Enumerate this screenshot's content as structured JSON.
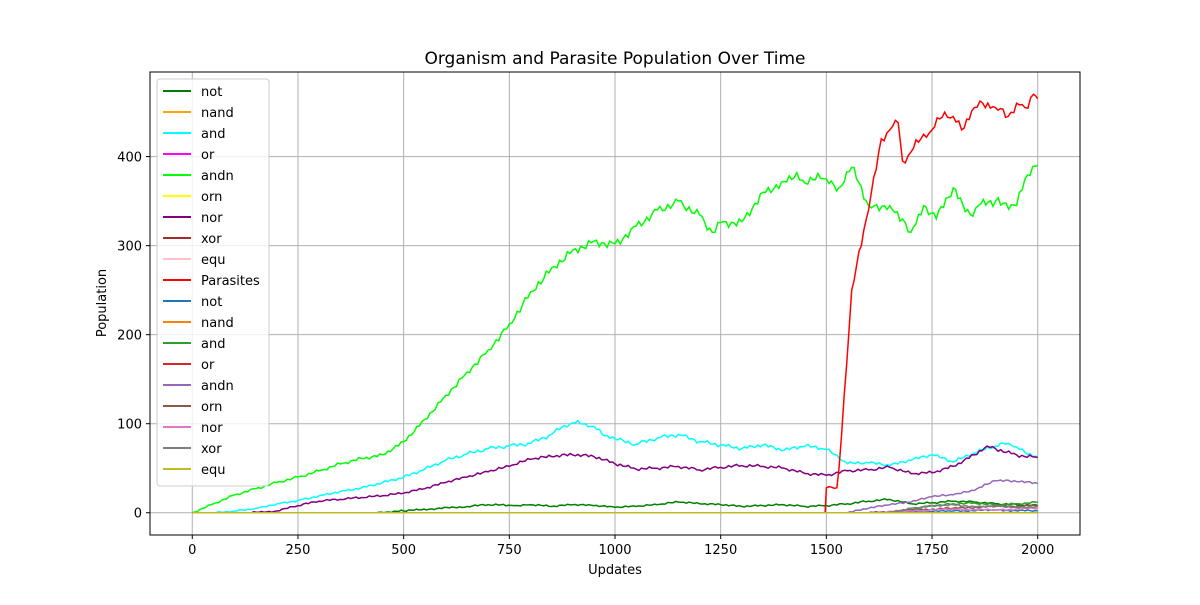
{
  "chart_data": {
    "type": "line",
    "title": "Organism and Parasite Population Over Time",
    "xlabel": "Updates",
    "ylabel": "Population",
    "xlim": [
      -100,
      2100
    ],
    "ylim": [
      -25,
      495
    ],
    "xticks": [
      0,
      250,
      500,
      750,
      1000,
      1250,
      1500,
      1750,
      2000
    ],
    "yticks": [
      0,
      100,
      200,
      300,
      400
    ],
    "grid": true,
    "legend_position": "upper-left",
    "series": [
      {
        "name": "not",
        "color": "#008000",
        "x": [
          0,
          430,
          500,
          560,
          650,
          700,
          760,
          800,
          850,
          900,
          950,
          1000,
          1050,
          1100,
          1150,
          1200,
          1250,
          1300,
          1350,
          1400,
          1450,
          1500,
          1550,
          1600,
          1650,
          1700,
          1750,
          1800,
          1850,
          1900,
          1950,
          2000
        ],
        "y": [
          0,
          0,
          2,
          4,
          7,
          9,
          8,
          9,
          7,
          9,
          8,
          6,
          7,
          9,
          12,
          10,
          9,
          7,
          8,
          9,
          7,
          8,
          10,
          13,
          15,
          10,
          11,
          13,
          12,
          10,
          9,
          8
        ]
      },
      {
        "name": "nand",
        "color": "#FFA500",
        "x": [
          0,
          2000
        ],
        "y": [
          0,
          0
        ]
      },
      {
        "name": "and",
        "color": "#00FFFF",
        "x": [
          0,
          50,
          100,
          150,
          200,
          250,
          300,
          350,
          400,
          450,
          500,
          550,
          600,
          650,
          700,
          750,
          800,
          850,
          880,
          900,
          930,
          950,
          970,
          1000,
          1050,
          1100,
          1150,
          1200,
          1250,
          1300,
          1350,
          1400,
          1450,
          1500,
          1550,
          1600,
          1650,
          1700,
          1750,
          1800,
          1850,
          1900,
          1930,
          1950,
          1970,
          2000
        ],
        "y": [
          0,
          0,
          2,
          5,
          10,
          14,
          19,
          24,
          28,
          34,
          40,
          49,
          59,
          66,
          72,
          75,
          78,
          88,
          98,
          101,
          100,
          97,
          88,
          83,
          77,
          84,
          88,
          80,
          76,
          72,
          76,
          70,
          75,
          71,
          55,
          56,
          53,
          59,
          65,
          57,
          67,
          75,
          78,
          74,
          68,
          63
        ]
      },
      {
        "name": "or",
        "color": "#FF00FF",
        "x": [
          0,
          2000
        ],
        "y": [
          0,
          0
        ]
      },
      {
        "name": "andn",
        "color": "#00FF00",
        "x": [
          0,
          50,
          100,
          150,
          200,
          250,
          300,
          350,
          400,
          450,
          500,
          550,
          600,
          650,
          700,
          750,
          800,
          850,
          900,
          950,
          1000,
          1050,
          1100,
          1150,
          1200,
          1230,
          1250,
          1300,
          1350,
          1400,
          1430,
          1450,
          1480,
          1500,
          1530,
          1560,
          1600,
          1650,
          1680,
          1700,
          1730,
          1760,
          1800,
          1840,
          1860,
          1900,
          1950,
          1970,
          2000
        ],
        "y": [
          0,
          10,
          20,
          27,
          34,
          40,
          47,
          55,
          61,
          65,
          80,
          105,
          132,
          158,
          183,
          212,
          248,
          275,
          295,
          305,
          302,
          322,
          340,
          350,
          335,
          315,
          326,
          327,
          360,
          372,
          382,
          370,
          381,
          375,
          365,
          388,
          345,
          345,
          330,
          315,
          345,
          330,
          365,
          335,
          345,
          350,
          345,
          375,
          390
        ]
      },
      {
        "name": "orn",
        "color": "#FFFF00",
        "x": [
          0,
          2000
        ],
        "y": [
          0,
          0
        ]
      },
      {
        "name": "nor",
        "color": "#800080",
        "x": [
          0,
          140,
          200,
          250,
          300,
          350,
          400,
          450,
          500,
          550,
          600,
          650,
          700,
          750,
          800,
          850,
          900,
          950,
          1000,
          1050,
          1100,
          1150,
          1200,
          1250,
          1300,
          1350,
          1400,
          1450,
          1500,
          1550,
          1600,
          1650,
          1700,
          1750,
          1800,
          1850,
          1880,
          1900,
          1950,
          2000
        ],
        "y": [
          0,
          0,
          2,
          8,
          13,
          15,
          17,
          19,
          22,
          27,
          34,
          40,
          46,
          52,
          60,
          63,
          65,
          63,
          55,
          49,
          50,
          52,
          48,
          51,
          53,
          52,
          50,
          44,
          42,
          47,
          48,
          51,
          44,
          45,
          52,
          65,
          75,
          72,
          65,
          62
        ]
      },
      {
        "name": "xor",
        "color": "#A52A2A",
        "x": [
          0,
          2000
        ],
        "y": [
          0,
          0
        ]
      },
      {
        "name": "equ",
        "color": "#FFC0CB",
        "x": [
          0,
          2000
        ],
        "y": [
          0,
          0
        ]
      },
      {
        "name": "Parasites",
        "color": "#FF0000",
        "x": [
          0,
          1497,
          1500,
          1525,
          1530,
          1560,
          1600,
          1630,
          1650,
          1670,
          1680,
          1700,
          1730,
          1750,
          1780,
          1800,
          1820,
          1850,
          1870,
          1900,
          1930,
          1950,
          1970,
          1990,
          2000
        ],
        "y": [
          0,
          0,
          28,
          28,
          50,
          250,
          340,
          420,
          430,
          438,
          395,
          405,
          425,
          430,
          450,
          445,
          430,
          455,
          460,
          455,
          445,
          460,
          455,
          470,
          465
        ]
      },
      {
        "name": "not",
        "color": "#1f77b4",
        "x": [
          0,
          1600,
          1700,
          1800,
          1900,
          2000
        ],
        "y": [
          0,
          0,
          1,
          2,
          3,
          2
        ]
      },
      {
        "name": "nand",
        "color": "#ff7f0e",
        "x": [
          0,
          2000
        ],
        "y": [
          0,
          0
        ]
      },
      {
        "name": "and",
        "color": "#2ca02c",
        "x": [
          0,
          1650,
          1700,
          1750,
          1800,
          1850,
          1900,
          1950,
          2000
        ],
        "y": [
          0,
          0,
          4,
          8,
          10,
          11,
          9,
          10,
          12
        ]
      },
      {
        "name": "or",
        "color": "#d62728",
        "x": [
          0,
          2000
        ],
        "y": [
          0,
          0
        ]
      },
      {
        "name": "andn",
        "color": "#9467bd",
        "x": [
          0,
          1550,
          1600,
          1650,
          1700,
          1750,
          1800,
          1850,
          1880,
          1900,
          1950,
          2000
        ],
        "y": [
          0,
          0,
          5,
          9,
          12,
          18,
          20,
          25,
          32,
          36,
          35,
          33
        ]
      },
      {
        "name": "orn",
        "color": "#8c564b",
        "x": [
          0,
          1600,
          1700,
          1800,
          1900,
          2000
        ],
        "y": [
          0,
          0,
          3,
          5,
          7,
          8
        ]
      },
      {
        "name": "nor",
        "color": "#e377c2",
        "x": [
          0,
          1600,
          1700,
          1800,
          1900,
          2000
        ],
        "y": [
          0,
          0,
          2,
          4,
          3,
          5
        ]
      },
      {
        "name": "xor",
        "color": "#7f7f7f",
        "x": [
          0,
          1650,
          1700,
          1750,
          1800,
          1850,
          1900,
          1950,
          2000
        ],
        "y": [
          0,
          0,
          5,
          8,
          9,
          7,
          8,
          6,
          7
        ]
      },
      {
        "name": "equ",
        "color": "#bcbd22",
        "x": [
          0,
          2000
        ],
        "y": [
          0,
          0
        ]
      }
    ]
  }
}
